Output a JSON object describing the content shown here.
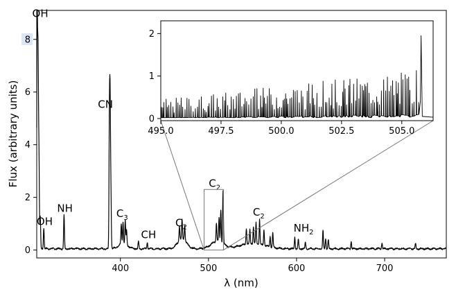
{
  "chart_data": [
    {
      "type": "line",
      "title": "",
      "xlabel": "λ (nm)",
      "ylabel": "Flux (arbitrary units)",
      "xlim": [
        305,
        770
      ],
      "ylim": [
        -0.3,
        9.1
      ],
      "x_ticks": [
        400,
        500,
        600,
        700
      ],
      "x_tick_labels": [
        "400",
        "500",
        "600",
        "700"
      ],
      "y_ticks": [
        0,
        2,
        4,
        6,
        8
      ],
      "y_tick_labels": [
        "0",
        "2",
        "4",
        "6",
        "8"
      ],
      "grid": false,
      "series_color": "#000000",
      "baseline": 0.05,
      "peaks": [
        {
          "x": 305.5,
          "y": 8.5
        },
        {
          "x": 306.5,
          "y": 7.0
        },
        {
          "x": 307.5,
          "y": 3.5
        },
        {
          "x": 309,
          "y": 1.2
        },
        {
          "x": 313,
          "y": 0.8
        },
        {
          "x": 336,
          "y": 1.3
        },
        {
          "x": 387.5,
          "y": 4.6
        },
        {
          "x": 388.3,
          "y": 5.1
        },
        {
          "x": 389.2,
          "y": 2.1
        },
        {
          "x": 401,
          "y": 0.75
        },
        {
          "x": 403,
          "y": 0.85
        },
        {
          "x": 405.5,
          "y": 0.9
        },
        {
          "x": 407,
          "y": 0.55
        },
        {
          "x": 420.5,
          "y": 0.3
        },
        {
          "x": 430.5,
          "y": 0.25
        },
        {
          "x": 467,
          "y": 0.55
        },
        {
          "x": 470,
          "y": 0.72
        },
        {
          "x": 473,
          "y": 0.6
        },
        {
          "x": 509,
          "y": 0.7
        },
        {
          "x": 512,
          "y": 0.9
        },
        {
          "x": 514,
          "y": 1.25
        },
        {
          "x": 516.5,
          "y": 2.0
        },
        {
          "x": 543,
          "y": 0.6
        },
        {
          "x": 547,
          "y": 0.55
        },
        {
          "x": 551,
          "y": 0.65
        },
        {
          "x": 554,
          "y": 0.8
        },
        {
          "x": 558,
          "y": 0.95
        },
        {
          "x": 563,
          "y": 0.6
        },
        {
          "x": 570,
          "y": 0.4
        },
        {
          "x": 573,
          "y": 0.55
        },
        {
          "x": 598,
          "y": 0.45
        },
        {
          "x": 602,
          "y": 0.35
        },
        {
          "x": 610,
          "y": 0.25
        },
        {
          "x": 630,
          "y": 0.7
        },
        {
          "x": 633,
          "y": 0.4
        },
        {
          "x": 636,
          "y": 0.35
        },
        {
          "x": 662,
          "y": 0.28
        },
        {
          "x": 697,
          "y": 0.22
        },
        {
          "x": 735,
          "y": 0.2
        }
      ],
      "humps": [
        {
          "x": 403,
          "w": 5,
          "y": 0.2
        },
        {
          "x": 470,
          "w": 5,
          "y": 0.38
        },
        {
          "x": 510,
          "w": 7,
          "y": 0.28
        },
        {
          "x": 550,
          "w": 14,
          "y": 0.2
        }
      ],
      "annotations": [
        {
          "text": "OH",
          "sub": "",
          "x": 309,
          "y": 8.85
        },
        {
          "text": "OH",
          "sub": "",
          "x": 314,
          "y": 0.95
        },
        {
          "text": "NH",
          "sub": "",
          "x": 337,
          "y": 1.45
        },
        {
          "text": "CN",
          "sub": "",
          "x": 383,
          "y": 5.4
        },
        {
          "text": "C",
          "sub": "3",
          "x": 402,
          "y": 1.25
        },
        {
          "text": "CH",
          "sub": "",
          "x": 432,
          "y": 0.45
        },
        {
          "text": "C",
          "sub": "2",
          "x": 469,
          "y": 0.9
        },
        {
          "text": "C",
          "sub": "2",
          "x": 507,
          "y": 2.4
        },
        {
          "text": "C",
          "sub": "2",
          "x": 557,
          "y": 1.3
        },
        {
          "text": "NH",
          "sub": "2",
          "x": 608,
          "y": 0.7
        }
      ],
      "zoom_box": {
        "x0": 495,
        "x1": 517,
        "y0": 0,
        "y1": 2.3
      },
      "highlighted_tick": "8"
    },
    {
      "type": "line",
      "title": "",
      "xlabel": "",
      "ylabel": "",
      "xlim": [
        495,
        506.3
      ],
      "ylim": [
        -0.05,
        2.3
      ],
      "x_ticks": [
        495.0,
        497.5,
        500.0,
        502.5,
        505.0
      ],
      "x_tick_labels": [
        "495.0",
        "497.5",
        "500.0",
        "502.5",
        "505.0"
      ],
      "y_ticks": [
        0,
        1,
        2
      ],
      "y_tick_labels": [
        "0",
        "1",
        "2"
      ],
      "grid": false,
      "series_color": "#000000",
      "line_density_per_nm": 14,
      "envelope_start": 0.45,
      "envelope_end": 1.15,
      "bandhead": {
        "x": 505.8,
        "y": 1.95
      }
    }
  ]
}
